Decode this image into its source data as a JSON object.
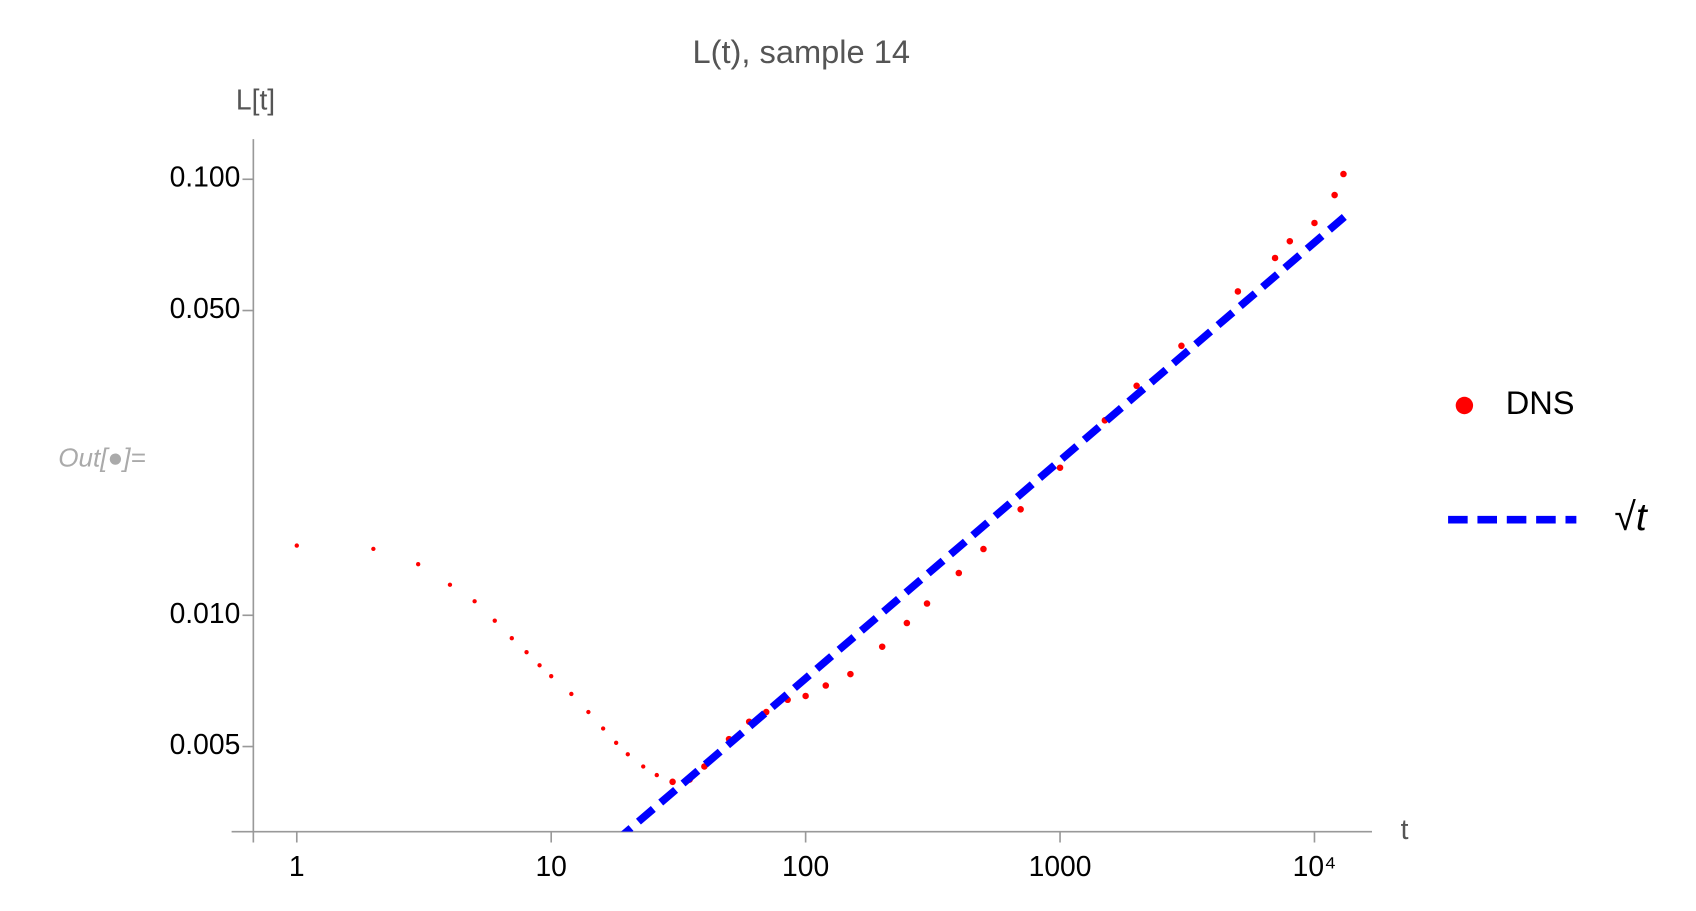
{
  "output_label": "Out[●]=",
  "chart_data": {
    "type": "scatter",
    "title": "L(t), sample 14",
    "x_label": "t",
    "y_label": "L[t]",
    "log_x": true,
    "log_y": true,
    "xlim": [
      0.675,
      16830
    ],
    "ylim": [
      0.00319,
      0.1236
    ],
    "xticks": [
      1,
      10,
      100,
      1000,
      {
        "value": 10000,
        "label": "10⁴"
      }
    ],
    "yticks": [
      {
        "value": 0.1,
        "label": "0.100"
      },
      {
        "value": 0.05,
        "label": "0.050"
      },
      {
        "value": 0.01,
        "label": "0.010"
      },
      {
        "value": 0.005,
        "label": "0.005"
      }
    ],
    "series": [
      {
        "name": "DNS",
        "color": "#ff0000",
        "kind": "points",
        "x": [
          1,
          2,
          3,
          4,
          5,
          6,
          7,
          8,
          9,
          10,
          12,
          14,
          16,
          18,
          20,
          23,
          26,
          30,
          35,
          40,
          50,
          60,
          70,
          85,
          100,
          120,
          150,
          200,
          250,
          300,
          400,
          500,
          700,
          1000,
          1500,
          2000,
          3000,
          5000,
          7000,
          8000,
          10000,
          12000,
          13000
        ],
        "values": [
          0.01445,
          0.0142,
          0.0131,
          0.01175,
          0.01077,
          0.00972,
          0.00886,
          0.00823,
          0.00768,
          0.00725,
          0.0066,
          0.006,
          0.0055,
          0.0051,
          0.0048,
          0.0045,
          0.0043,
          0.00415,
          0.0042,
          0.0045,
          0.0052,
          0.0057,
          0.006,
          0.0064,
          0.00653,
          0.0069,
          0.00733,
          0.00847,
          0.0096,
          0.01064,
          0.0125,
          0.01419,
          0.0175,
          0.0218,
          0.028,
          0.0336,
          0.0415,
          0.0553,
          0.066,
          0.0721,
          0.0794,
          0.092,
          0.1028
        ]
      },
      {
        "name": "√t",
        "color": "#0000ff",
        "kind": "dashed-line",
        "x": [
          18,
          13500
        ],
        "values": [
          0.00304,
          0.0832
        ]
      }
    ]
  }
}
